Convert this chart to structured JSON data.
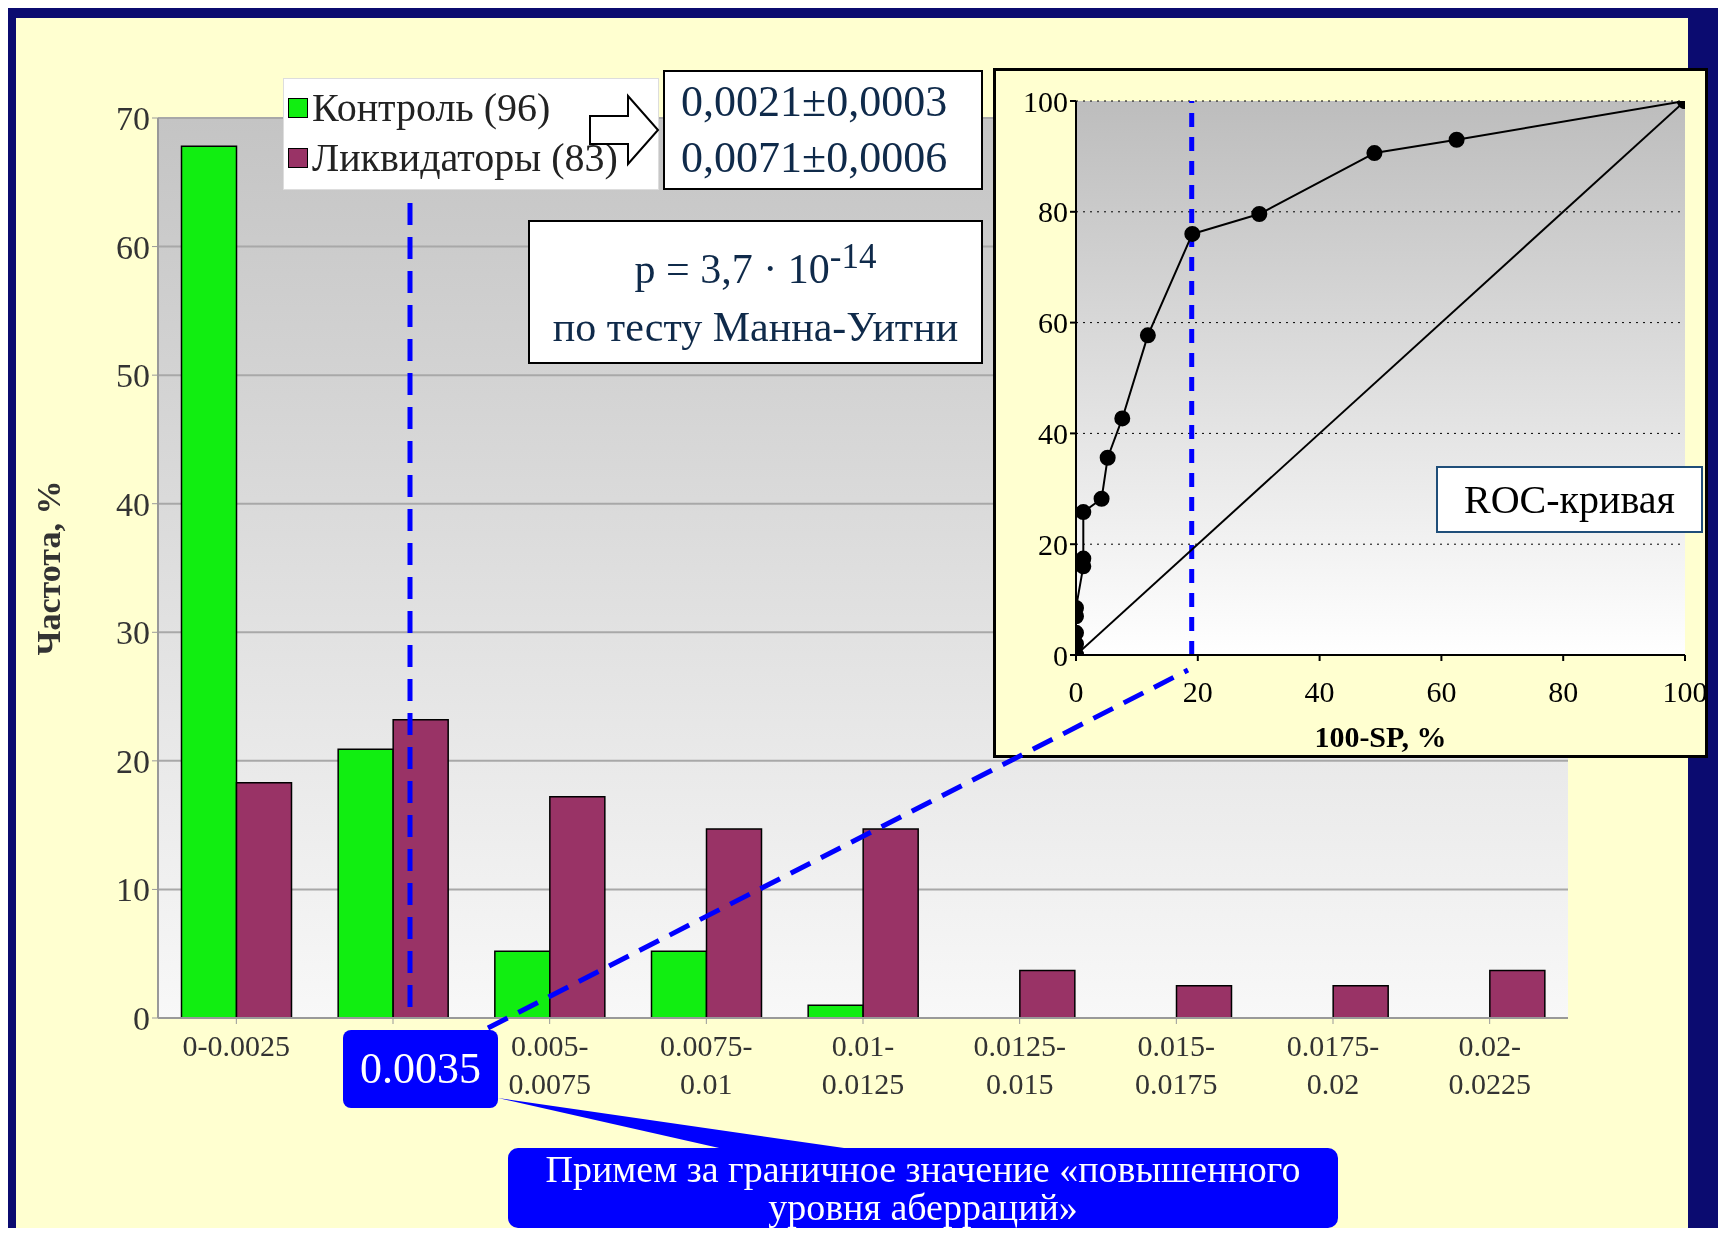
{
  "chart_data": [
    {
      "type": "bar",
      "ylabel": "Частота, %",
      "categories": [
        "0-0.0025",
        null,
        "0.005-0.0075",
        "0.0075-0.01",
        "0.01-0.0125",
        "0.0125-0.015",
        "0.015-0.0175",
        "0.0175-0.02",
        "0.02-0.0225"
      ],
      "series": [
        {
          "name": "Контроль (96)",
          "color": "#11ee11",
          "values": [
            67.8,
            20.9,
            5.2,
            5.2,
            1.0,
            0,
            0,
            0,
            0
          ]
        },
        {
          "name": "Ликвидаторы (83)",
          "color": "#993366",
          "values": [
            18.3,
            23.2,
            17.2,
            14.7,
            14.7,
            3.7,
            2.5,
            2.5,
            3.7
          ]
        }
      ],
      "ylim": [
        0,
        70
      ],
      "yticks": [
        0,
        10,
        20,
        30,
        40,
        50,
        60,
        70
      ],
      "grid": "y",
      "legend": "top left",
      "annotations": [
        "0,0021±0,0003",
        "0,0071±0,0006",
        "p = 3,7 · 10$^{-14}$",
        "по тесту Манна-Уитни",
        "0.0035",
        "Примем за граничное значение «повышенного уровня аберраций»"
      ]
    },
    {
      "type": "line",
      "xlabel": "100-SP, %",
      "series": [
        {
          "color": "#000000",
          "x": [
            0,
            0,
            0,
            0,
            0,
            1.2,
            1.2,
            1.2,
            4.2,
            5.2,
            7.6,
            11.8,
            19.1,
            30.1,
            49,
            62.5,
            100
          ],
          "values": [
            0,
            2,
            4,
            7,
            8.5,
            16,
            17.4,
            25.8,
            28.2,
            35.6,
            42.7,
            57.7,
            76,
            79.6,
            90.6,
            93,
            100
          ]
        },
        {
          "color": "#000000",
          "x": [
            0,
            100
          ],
          "values": [
            0,
            100
          ]
        }
      ],
      "xlim": [
        0,
        100
      ],
      "xticks": [
        0,
        20,
        40,
        60,
        80,
        100
      ],
      "ylim": [
        0,
        100
      ],
      "yticks": [
        0,
        20,
        40,
        60,
        80,
        100
      ],
      "grid": "y",
      "marker": "circle",
      "ref_lines": [
        {
          "axis": "x",
          "value": 19,
          "color": "#0000ff",
          "line_style": "dashed"
        }
      ],
      "annotations": [
        "ROC-кривая"
      ]
    }
  ]
}
